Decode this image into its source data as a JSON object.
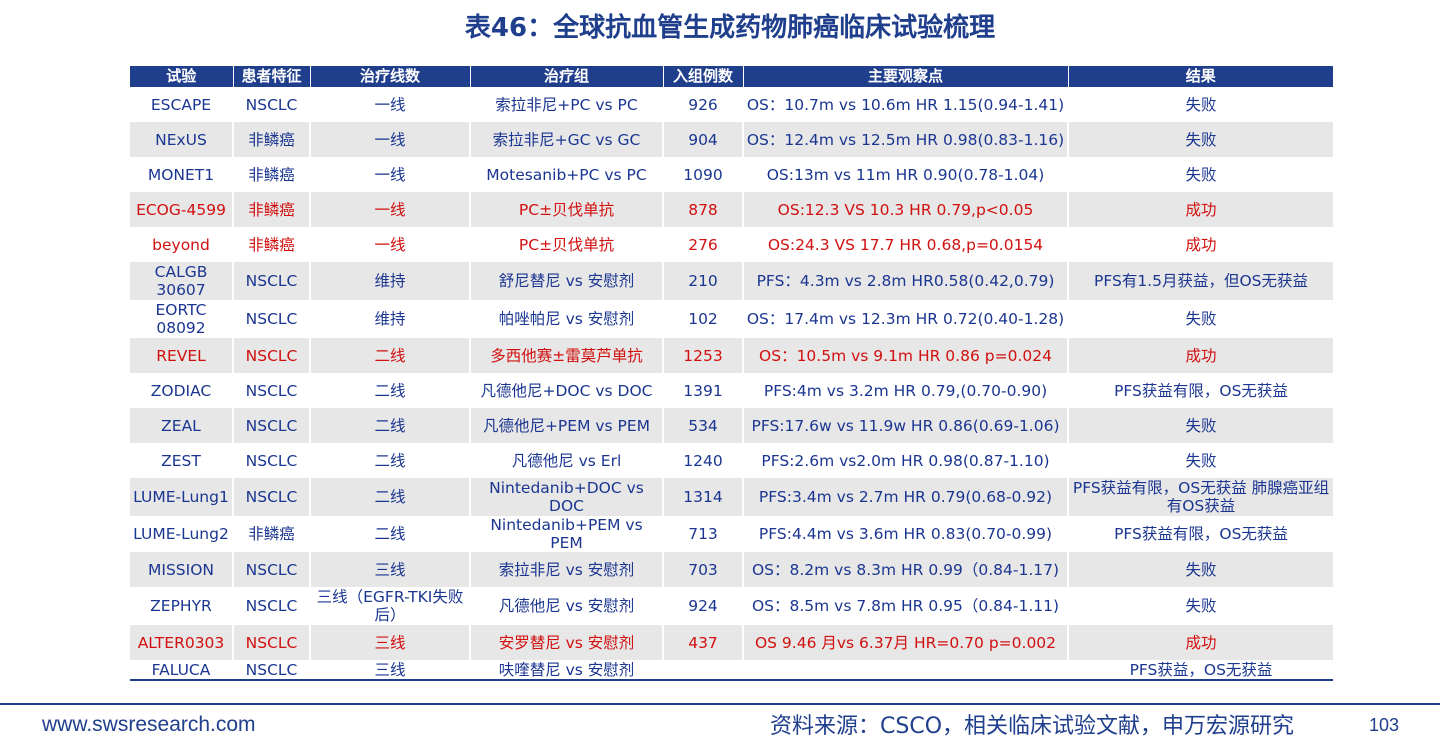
{
  "title": "表46：全球抗血管生成药物肺癌临床试验梳理",
  "table": {
    "headers": [
      "试验",
      "患者特征",
      "治疗线数",
      "治疗组",
      "入组例数",
      "主要观察点",
      "结果"
    ],
    "rows": [
      {
        "trial": "ESCAPE",
        "patient": "NSCLC",
        "line": "一线",
        "arm": "索拉非尼+PC vs PC",
        "n": "926",
        "endpoint": "OS：10.7m vs 10.6m HR 1.15(0.94-1.41)",
        "result": "失败",
        "highlight": false,
        "shaded": false
      },
      {
        "trial": "NExUS",
        "patient": "非鳞癌",
        "line": "一线",
        "arm": "索拉非尼+GC vs GC",
        "n": "904",
        "endpoint": "OS：12.4m vs 12.5m HR 0.98(0.83-1.16)",
        "result": "失败",
        "highlight": false,
        "shaded": true
      },
      {
        "trial": "MONET1",
        "patient": "非鳞癌",
        "line": "一线",
        "arm": "Motesanib+PC vs PC",
        "n": "1090",
        "endpoint": "OS:13m vs 11m HR 0.90(0.78-1.04)",
        "result": "失败",
        "highlight": false,
        "shaded": false
      },
      {
        "trial": "ECOG-4599",
        "patient": "非鳞癌",
        "line": "一线",
        "arm": "PC±贝伐单抗",
        "n": "878",
        "endpoint": "OS:12.3 VS 10.3 HR 0.79,p<0.05",
        "result": "成功",
        "highlight": true,
        "shaded": true
      },
      {
        "trial": "beyond",
        "patient": "非鳞癌",
        "line": "一线",
        "arm": "PC±贝伐单抗",
        "n": "276",
        "endpoint": "OS:24.3 VS 17.7 HR 0.68,p=0.0154",
        "result": "成功",
        "highlight": true,
        "shaded": false
      },
      {
        "trial": "CALGB 30607",
        "patient": "NSCLC",
        "line": "维持",
        "arm": "舒尼替尼 vs 安慰剂",
        "n": "210",
        "endpoint": "PFS：4.3m vs 2.8m HR0.58(0.42,0.79)",
        "result": "PFS有1.5月获益，但OS无获益",
        "highlight": false,
        "shaded": true
      },
      {
        "trial": "EORTC 08092",
        "patient": "NSCLC",
        "line": "维持",
        "arm": "帕唑帕尼 vs 安慰剂",
        "n": "102",
        "endpoint": "OS：17.4m vs 12.3m HR 0.72(0.40-1.28)",
        "result": "失败",
        "highlight": false,
        "shaded": false
      },
      {
        "trial": "REVEL",
        "patient": "NSCLC",
        "line": "二线",
        "arm": "多西他赛±雷莫芦单抗",
        "n": "1253",
        "endpoint": "OS：10.5m vs 9.1m HR 0.86 p=0.024",
        "result": "成功",
        "highlight": true,
        "shaded": true
      },
      {
        "trial": "ZODIAC",
        "patient": "NSCLC",
        "line": "二线",
        "arm": "凡德他尼+DOC vs DOC",
        "n": "1391",
        "endpoint": "PFS:4m vs 3.2m HR 0.79,(0.70-0.90)",
        "result": "PFS获益有限，OS无获益",
        "highlight": false,
        "shaded": false
      },
      {
        "trial": "ZEAL",
        "patient": "NSCLC",
        "line": "二线",
        "arm": "凡德他尼+PEM vs PEM",
        "n": "534",
        "endpoint": "PFS:17.6w vs 11.9w HR 0.86(0.69-1.06)",
        "result": "失败",
        "highlight": false,
        "shaded": true
      },
      {
        "trial": "ZEST",
        "patient": "NSCLC",
        "line": "二线",
        "arm": "凡德他尼 vs Erl",
        "n": "1240",
        "endpoint": "PFS:2.6m vs2.0m HR 0.98(0.87-1.10)",
        "result": "失败",
        "highlight": false,
        "shaded": false
      },
      {
        "trial": "LUME-Lung1",
        "patient": "NSCLC",
        "line": "二线",
        "arm": "Nintedanib+DOC vs DOC",
        "n": "1314",
        "endpoint": "PFS:3.4m vs 2.7m HR 0.79(0.68-0.92)",
        "result": "PFS获益有限，OS无获益 肺腺癌亚组有OS获益",
        "highlight": false,
        "shaded": true
      },
      {
        "trial": "LUME-Lung2",
        "patient": "非鳞癌",
        "line": "二线",
        "arm": "Nintedanib+PEM vs PEM",
        "n": "713",
        "endpoint": "PFS:4.4m vs 3.6m HR 0.83(0.70-0.99)",
        "result": "PFS获益有限，OS无获益",
        "highlight": false,
        "shaded": false
      },
      {
        "trial": "MISSION",
        "patient": "NSCLC",
        "line": "三线",
        "arm": "索拉非尼 vs 安慰剂",
        "n": "703",
        "endpoint": "OS：8.2m vs 8.3m HR 0.99（0.84-1.17)",
        "result": "失败",
        "highlight": false,
        "shaded": true
      },
      {
        "trial": "ZEPHYR",
        "patient": "NSCLC",
        "line": "三线（EGFR-TKI失败后）",
        "arm": "凡德他尼 vs 安慰剂",
        "n": "924",
        "endpoint": "OS：8.5m vs 7.8m HR 0.95（0.84-1.11)",
        "result": "失败",
        "highlight": false,
        "shaded": false
      },
      {
        "trial": "ALTER0303",
        "patient": "NSCLC",
        "line": "三线",
        "arm": "安罗替尼 vs 安慰剂",
        "n": "437",
        "endpoint": "OS 9.46 月vs 6.37月 HR=0.70 p=0.002",
        "result": "成功",
        "highlight": true,
        "shaded": true
      },
      {
        "trial": "FALUCA",
        "patient": "NSCLC",
        "line": "三线",
        "arm": "呋喹替尼 vs 安慰剂",
        "n": "",
        "endpoint": "",
        "result": "PFS获益，OS无获益",
        "highlight": false,
        "shaded": false
      }
    ]
  },
  "footer": {
    "url": "www.swsresearch.com",
    "source": "资料来源：CSCO，相关临床试验文献，申万宏源研究",
    "page": "103"
  }
}
